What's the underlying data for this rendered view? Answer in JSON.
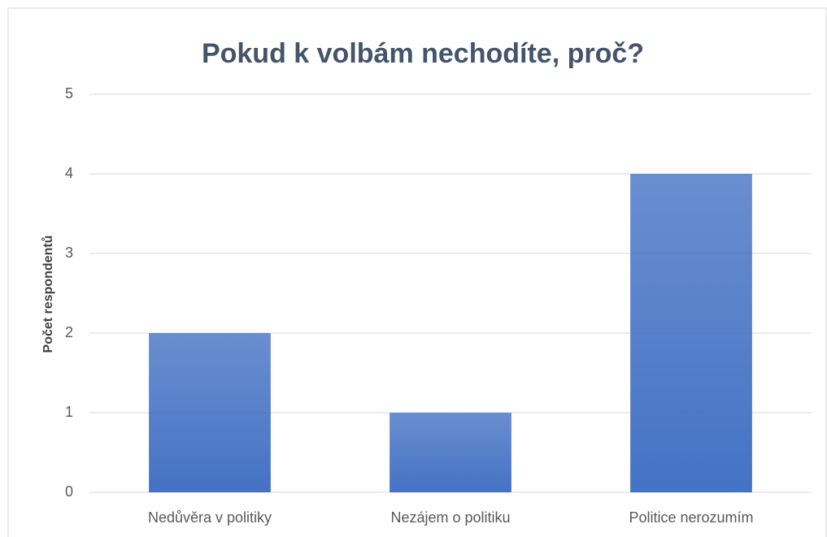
{
  "chart_data": {
    "type": "bar",
    "title": "Pokud k volbám nechodíte, proč?",
    "y_label": "Počet respondentů",
    "categories": [
      "Nedůvěra v politiky",
      "Nezájem o politiku",
      "Politice nerozumím"
    ],
    "values": [
      2,
      1,
      4
    ],
    "color": "#4472c4",
    "ylim": [
      0,
      5
    ],
    "yticks": [
      0,
      1,
      2,
      3,
      4,
      5
    ],
    "grid": true
  }
}
